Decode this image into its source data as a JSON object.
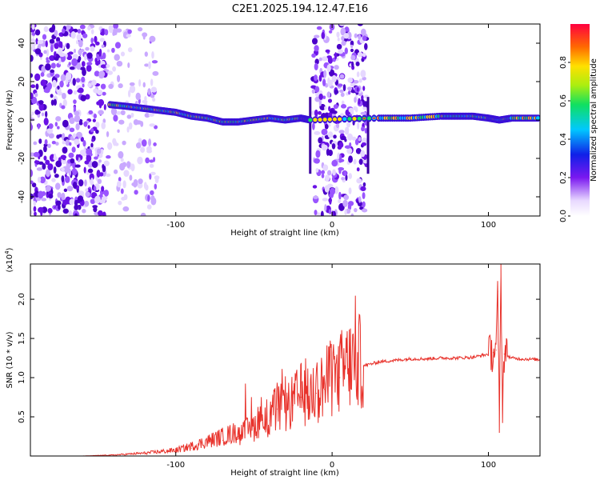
{
  "title": "C2E1.2025.194.12.47.E16",
  "chart_data": [
    {
      "type": "heatmap",
      "xlabel": "Height of straight line (km)",
      "ylabel": "Frequency (Hz)",
      "xlim": [
        -193,
        133
      ],
      "ylim": [
        -50,
        50
      ],
      "xticks": [
        -100,
        0,
        100
      ],
      "xtick_labels": [
        "-100",
        "0",
        "100"
      ],
      "yticks": [
        -40,
        -20,
        0,
        20,
        40
      ],
      "ytick_labels": [
        "-40",
        "-20",
        "0",
        "20",
        "40"
      ],
      "colorbar": {
        "label": "Normalized spectral amplitude",
        "range": [
          0,
          1
        ],
        "ticks": [
          0.0,
          0.2,
          0.4,
          0.6,
          0.8
        ],
        "tick_labels": [
          "0.0",
          "0.2",
          "0.4",
          "0.6",
          "0.8"
        ]
      },
      "ridge": {
        "x": [
          -142,
          -130,
          -120,
          -110,
          -100,
          -90,
          -80,
          -70,
          -60,
          -50,
          -40,
          -30,
          -20,
          -14,
          30,
          50,
          70,
          80,
          90,
          100,
          107,
          115,
          133
        ],
        "freq": [
          8,
          7,
          6,
          5,
          4,
          2,
          1,
          -1,
          -1,
          0,
          1,
          0,
          1,
          0,
          1,
          1,
          2,
          2,
          2,
          1,
          0,
          1,
          1
        ]
      }
    },
    {
      "type": "line",
      "xlabel": "Height of straight line (km)",
      "ylabel": "SNR (10 * v/v)",
      "y_scale_label": "(x10⁴)",
      "y_scale_prefix": "(x10",
      "y_scale_exp": "4",
      "y_scale_suffix": ")",
      "xlim": [
        -193,
        133
      ],
      "ylim": [
        0,
        2.45
      ],
      "xticks": [
        -100,
        0,
        100
      ],
      "xtick_labels": [
        "-100",
        "0",
        "100"
      ],
      "yticks": [
        0.5,
        1.0,
        1.5,
        2.0
      ],
      "ytick_labels": [
        "0.5",
        "1.0",
        "1.5",
        "2.0"
      ],
      "series": [
        {
          "color": "#e8322b",
          "x": [
            -193,
            -160,
            -140,
            -120,
            -100,
            -90,
            -80,
            -70,
            -60,
            -50,
            -45,
            -40,
            -35,
            -30,
            -25,
            -20,
            -15,
            -10,
            -5,
            0,
            5,
            10,
            20,
            30,
            40,
            50,
            60,
            70,
            80,
            90,
            95,
            100,
            103,
            105,
            106,
            107,
            108,
            109,
            110,
            115,
            120,
            133
          ],
          "y": [
            0.0,
            0.0,
            0.01,
            0.03,
            0.06,
            0.1,
            0.15,
            0.2,
            0.25,
            0.35,
            0.5,
            0.45,
            0.6,
            0.55,
            0.65,
            0.75,
            0.7,
            0.8,
            0.85,
            0.95,
            1.0,
            1.1,
            1.15,
            1.2,
            1.22,
            1.24,
            1.24,
            1.25,
            1.25,
            1.26,
            1.28,
            1.3,
            1.32,
            1.35,
            2.1,
            0.3,
            2.45,
            0.6,
            1.3,
            1.25,
            1.24,
            1.23
          ]
        }
      ]
    }
  ]
}
